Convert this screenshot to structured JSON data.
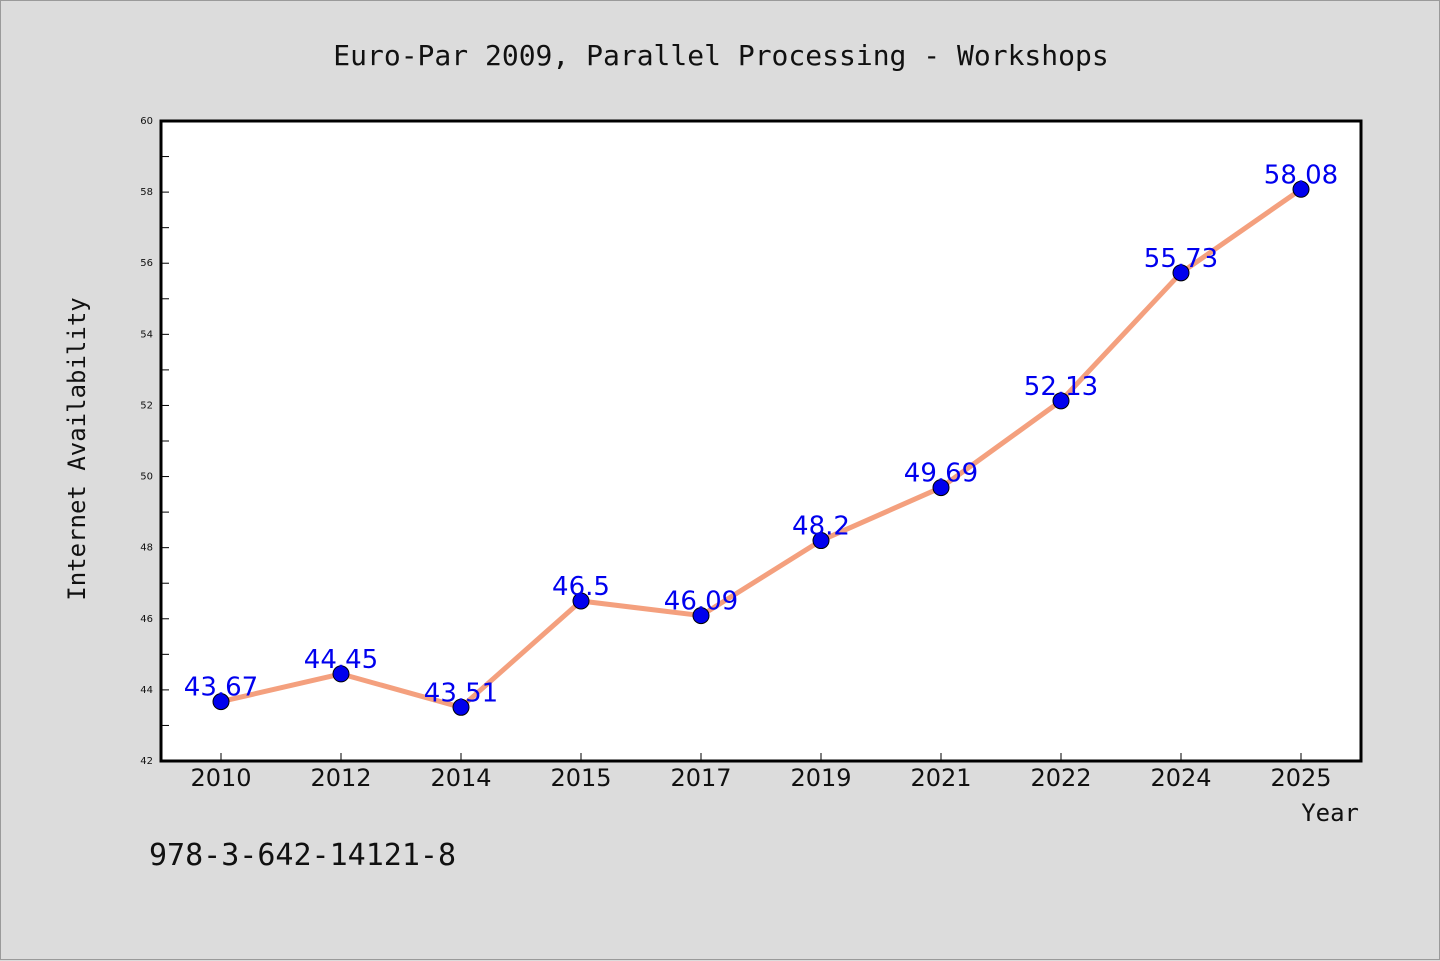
{
  "chart_data": {
    "type": "line",
    "title": "Euro-Par 2009, Parallel Processing - Workshops",
    "xlabel": "Year",
    "ylabel": "Internet Availability",
    "categories": [
      "2010",
      "2012",
      "2014",
      "2015",
      "2017",
      "2019",
      "2021",
      "2022",
      "2024",
      "2025"
    ],
    "series": [
      {
        "values": [
          43.67,
          44.45,
          43.51,
          46.5,
          46.09,
          48.2,
          49.69,
          52.13,
          55.73,
          58.08
        ],
        "labels": [
          "43.67",
          "44.45",
          "43.51",
          "46.5",
          "46.09",
          "48.2",
          "49.69",
          "52.13",
          "55.73",
          "58.08"
        ]
      }
    ],
    "ylim": [
      42,
      60
    ],
    "yticks": [
      "42",
      "44",
      "46",
      "48",
      "50",
      "52",
      "54",
      "56",
      "58",
      "60"
    ],
    "grid": false,
    "line_color": "#f4a07e",
    "marker_color": "#0000ee",
    "label_color": "#0000ee",
    "background": "#dcdcdc",
    "plot_background": "#ffffff"
  },
  "footer_text": "978-3-642-14121-8"
}
